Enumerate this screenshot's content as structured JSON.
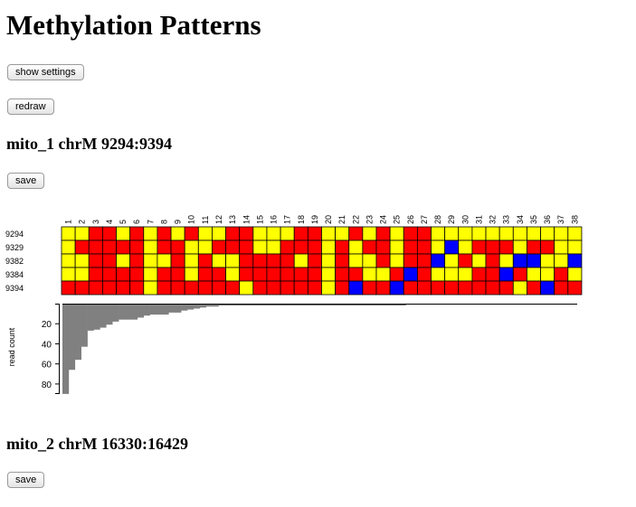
{
  "page": {
    "title": "Methylation Patterns"
  },
  "controls": {
    "show_settings_label": "show settings",
    "redraw_label": "redraw"
  },
  "regions": [
    {
      "title": "mito_1 chrM 9294:9394",
      "save_label": "save",
      "columns": [
        "1",
        "2",
        "3",
        "4",
        "5",
        "6",
        "7",
        "8",
        "9",
        "10",
        "11",
        "12",
        "13",
        "14",
        "15",
        "16",
        "17",
        "18",
        "19",
        "20",
        "21",
        "22",
        "23",
        "24",
        "25",
        "26",
        "27",
        "28",
        "29",
        "30",
        "31",
        "32",
        "33",
        "34",
        "35",
        "36",
        "37",
        "38"
      ],
      "row_labels": [
        "9294",
        "9329",
        "9382",
        "9384",
        "9394"
      ],
      "cell_legend": {
        "Y": "yellow",
        "R": "red",
        "B": "blue"
      },
      "colors": {
        "Y": "#ffff00",
        "R": "#ff0000",
        "B": "#0000ff"
      },
      "matrix": [
        "YYRRYRYRYRYYRRYYYRRYYRYRYRRYYYYYYYYYYY",
        "YRRRRRYRRYYRRRYYRRRYRYRRYRRYBYRRRYRRYY",
        "YYRRYRYYRYRYYRRRRYRYRYYRYRRBYRYRYBBYYB",
        "YYRRRRYRRYRRYRRRRRRYRRYYRBRYYYRRBRYYRY",
        "RRRRRRYRRRRRRYRRRRRYRBRRBRRRRRRRRYRBRR"
      ],
      "read_count": {
        "axis_label": "read count",
        "ticks": [
          "20",
          "40",
          "60",
          "80"
        ],
        "max": 90,
        "values": [
          89,
          65,
          55,
          42,
          26,
          25,
          23,
          20,
          17,
          15,
          15,
          15,
          13,
          11,
          10,
          10,
          10,
          8,
          8,
          6,
          5,
          4,
          3,
          2,
          2,
          1,
          1,
          1,
          1,
          1,
          1,
          1,
          1,
          1,
          1,
          1,
          1,
          1,
          1,
          1,
          1,
          1,
          1,
          1,
          1,
          1,
          1,
          1,
          1,
          1,
          1,
          1,
          1,
          1,
          1
        ]
      }
    },
    {
      "title": "mito_2 chrM 16330:16429",
      "save_label": "save"
    }
  ]
}
